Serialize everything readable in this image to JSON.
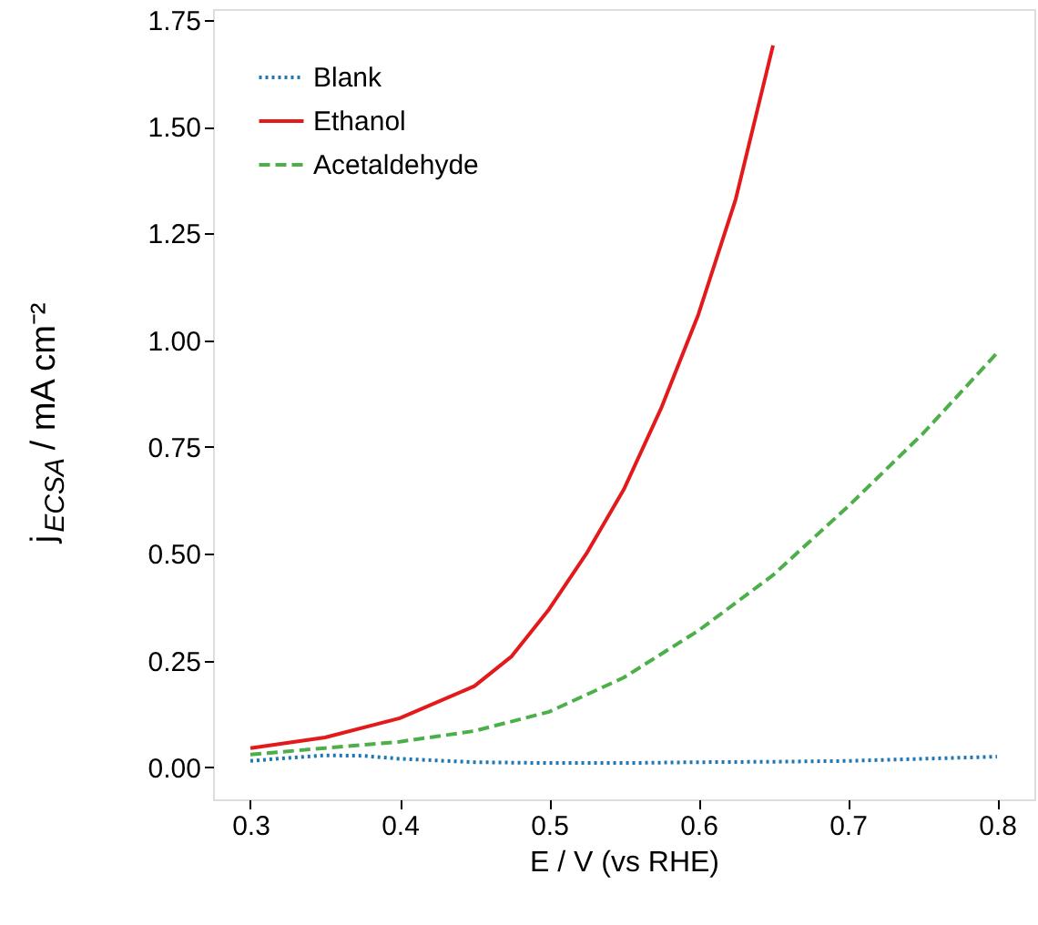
{
  "chart_data": {
    "type": "line",
    "xlabel": "E / V (vs RHE)",
    "ylabel": "j$_{ECSA}$ / mA cm⁻²",
    "xlim": [
      0.275,
      0.825
    ],
    "xticks": [
      0.3,
      0.4,
      0.5,
      0.6,
      0.7,
      0.8
    ],
    "ylim": [
      -0.075,
      1.775
    ],
    "yticks": [
      {
        "value": 0,
        "label": "0.00"
      },
      0.25,
      {
        "value": 0.5,
        "label": "0.50"
      },
      0.75,
      {
        "value": 1,
        "label": "1.00"
      },
      1.25,
      {
        "value": 1.5,
        "label": "1.50"
      },
      1.75
    ],
    "grid": false,
    "legend": "top left",
    "marker": "none",
    "series": [
      {
        "name": "Blank",
        "color": "#1f77b4",
        "line_style": "dotted",
        "x": [
          0.3,
          0.325,
          0.35,
          0.375,
          0.4,
          0.45,
          0.5,
          0.55,
          0.6,
          0.65,
          0.7,
          0.75,
          0.8
        ],
        "values": [
          0.015,
          0.022,
          0.028,
          0.027,
          0.02,
          0.012,
          0.01,
          0.01,
          0.012,
          0.013,
          0.015,
          0.02,
          0.025
        ]
      },
      {
        "name": "Ethanol",
        "color": "#e31a1c",
        "line_style": "solid",
        "x": [
          0.3,
          0.35,
          0.4,
          0.45,
          0.475,
          0.5,
          0.525,
          0.55,
          0.575,
          0.6,
          0.625,
          0.65
        ],
        "values": [
          0.045,
          0.07,
          0.115,
          0.19,
          0.26,
          0.37,
          0.5,
          0.65,
          0.84,
          1.06,
          1.33,
          1.69
        ]
      },
      {
        "name": "Acetaldehyde",
        "color": "#4daf4a",
        "line_style": "dashed",
        "x": [
          0.3,
          0.35,
          0.4,
          0.45,
          0.5,
          0.55,
          0.6,
          0.65,
          0.7,
          0.75,
          0.8
        ],
        "values": [
          0.03,
          0.045,
          0.06,
          0.085,
          0.13,
          0.21,
          0.32,
          0.45,
          0.61,
          0.78,
          0.97
        ]
      }
    ]
  }
}
